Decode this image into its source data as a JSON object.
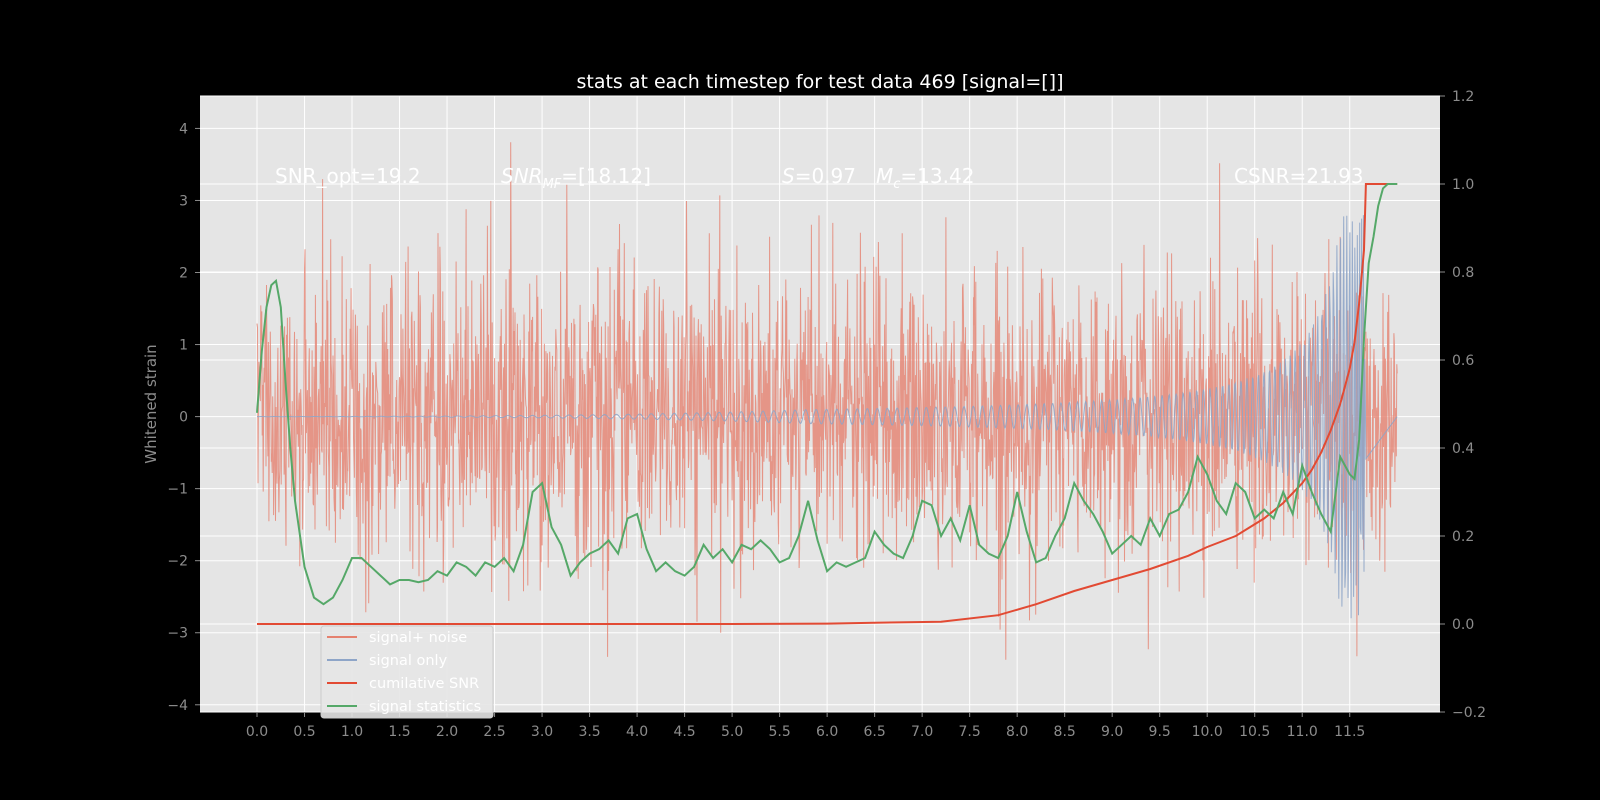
{
  "chart_data": {
    "type": "line",
    "title": "stats at each timestep for test data 469 [signal=[]]",
    "ylabel": "Whitened strain",
    "y2label": "",
    "xlim": [
      -0.6,
      12.45
    ],
    "ylim": [
      -4.1,
      4.45
    ],
    "y2lim": [
      -0.2,
      1.2
    ],
    "x_ticks": [
      0.0,
      0.5,
      1.0,
      1.5,
      2.0,
      2.5,
      3.0,
      3.5,
      4.0,
      4.5,
      5.0,
      5.5,
      6.0,
      6.5,
      7.0,
      7.5,
      8.0,
      8.5,
      9.0,
      9.5,
      10.0,
      10.5,
      11.0,
      11.5
    ],
    "x_tick_labels": [
      "0.0",
      "0.5",
      "1.0",
      "1.5",
      "2.0",
      "2.5",
      "3.0",
      "3.5",
      "4.0",
      "4.5",
      "5.0",
      "5.5",
      "6.0",
      "6.5",
      "7.0",
      "7.5",
      "8.0",
      "8.5",
      "9.0",
      "9.5",
      "10.0",
      "10.5",
      "11.0",
      "11.5"
    ],
    "y_ticks": [
      -4,
      -3,
      -2,
      -1,
      0,
      1,
      2,
      3,
      4
    ],
    "y_tick_labels": [
      "−4",
      "−3",
      "−2",
      "−1",
      "0",
      "1",
      "2",
      "3",
      "4"
    ],
    "y2_ticks": [
      -0.2,
      0.0,
      0.2,
      0.4,
      0.6,
      0.8,
      1.0,
      1.2
    ],
    "y2_tick_labels": [
      "−0.2",
      "0.0",
      "0.2",
      "0.4",
      "0.6",
      "0.8",
      "1.0",
      "1.2"
    ],
    "grid": true,
    "legend_position": "lower-left",
    "annotations": {
      "snr_opt": "SNR_opt=19.2",
      "snr_mf_main": "SNR",
      "snr_mf_sub": "MF",
      "snr_mf_val": "=[18.12]",
      "s_main": "S",
      "s_val": "=0.97",
      "mc_main": "M",
      "mc_sub": "c",
      "mc_val": "=13.42",
      "csnr": "CSNR=21.93"
    },
    "series": [
      {
        "name": "signal+ noise",
        "color": "#e5816f",
        "axis": "left",
        "band": {
          "x_start": 0.0,
          "x_end": 12.0,
          "sigma": 1.0,
          "max_spike": 4.08,
          "min_spike": -3.65
        }
      },
      {
        "name": "signal only",
        "color": "#8ea5c8",
        "axis": "left",
        "chirp": {
          "x_start": 0.0,
          "x_end": 11.67,
          "peak_amplitude": 2.8
        }
      },
      {
        "name": "cumilative SNR",
        "color": "#e24a33",
        "axis": "right",
        "x": [
          0.0,
          5.0,
          6.0,
          6.5,
          7.2,
          7.8,
          8.2,
          8.6,
          9.0,
          9.4,
          9.8,
          10.0,
          10.3,
          10.6,
          10.8,
          11.0,
          11.1,
          11.2,
          11.3,
          11.4,
          11.5,
          11.55,
          11.6,
          11.65,
          11.67,
          12.0
        ],
        "values": [
          0.0,
          0.0,
          0.001,
          0.003,
          0.005,
          0.02,
          0.045,
          0.075,
          0.1,
          0.125,
          0.155,
          0.175,
          0.2,
          0.24,
          0.275,
          0.32,
          0.35,
          0.39,
          0.44,
          0.5,
          0.58,
          0.64,
          0.73,
          0.85,
          1.0,
          1.0
        ]
      },
      {
        "name": "signal statistics",
        "color": "#55a868",
        "axis": "right",
        "x": [
          0.0,
          0.05,
          0.1,
          0.15,
          0.2,
          0.25,
          0.3,
          0.35,
          0.4,
          0.5,
          0.6,
          0.7,
          0.8,
          0.9,
          1.0,
          1.1,
          1.2,
          1.3,
          1.4,
          1.5,
          1.6,
          1.7,
          1.8,
          1.9,
          2.0,
          2.1,
          2.2,
          2.3,
          2.4,
          2.5,
          2.6,
          2.7,
          2.8,
          2.9,
          3.0,
          3.1,
          3.2,
          3.3,
          3.4,
          3.5,
          3.6,
          3.7,
          3.8,
          3.9,
          4.0,
          4.1,
          4.2,
          4.3,
          4.4,
          4.5,
          4.6,
          4.7,
          4.8,
          4.9,
          5.0,
          5.1,
          5.2,
          5.3,
          5.4,
          5.5,
          5.6,
          5.7,
          5.8,
          5.9,
          6.0,
          6.1,
          6.2,
          6.3,
          6.4,
          6.5,
          6.6,
          6.7,
          6.8,
          6.9,
          7.0,
          7.1,
          7.2,
          7.3,
          7.4,
          7.5,
          7.6,
          7.7,
          7.8,
          7.9,
          8.0,
          8.1,
          8.2,
          8.3,
          8.4,
          8.5,
          8.6,
          8.7,
          8.8,
          8.9,
          9.0,
          9.1,
          9.2,
          9.3,
          9.4,
          9.5,
          9.6,
          9.7,
          9.8,
          9.9,
          10.0,
          10.1,
          10.2,
          10.3,
          10.4,
          10.5,
          10.6,
          10.7,
          10.8,
          10.9,
          11.0,
          11.1,
          11.2,
          11.3,
          11.4,
          11.45,
          11.5,
          11.55,
          11.6,
          11.65,
          11.7,
          11.75,
          11.8,
          11.85,
          11.9,
          11.95,
          12.0
        ],
        "values": [
          0.48,
          0.62,
          0.72,
          0.77,
          0.78,
          0.72,
          0.55,
          0.4,
          0.28,
          0.13,
          0.06,
          0.045,
          0.06,
          0.1,
          0.15,
          0.15,
          0.13,
          0.11,
          0.09,
          0.1,
          0.1,
          0.095,
          0.1,
          0.12,
          0.11,
          0.14,
          0.13,
          0.11,
          0.14,
          0.13,
          0.15,
          0.12,
          0.18,
          0.3,
          0.32,
          0.22,
          0.18,
          0.11,
          0.14,
          0.16,
          0.17,
          0.19,
          0.16,
          0.24,
          0.25,
          0.17,
          0.12,
          0.14,
          0.12,
          0.11,
          0.13,
          0.18,
          0.15,
          0.17,
          0.14,
          0.18,
          0.17,
          0.19,
          0.17,
          0.14,
          0.15,
          0.2,
          0.28,
          0.19,
          0.12,
          0.14,
          0.13,
          0.14,
          0.15,
          0.21,
          0.18,
          0.16,
          0.15,
          0.2,
          0.28,
          0.27,
          0.2,
          0.24,
          0.19,
          0.27,
          0.18,
          0.16,
          0.15,
          0.2,
          0.3,
          0.21,
          0.14,
          0.15,
          0.2,
          0.24,
          0.32,
          0.28,
          0.25,
          0.21,
          0.16,
          0.18,
          0.2,
          0.18,
          0.24,
          0.2,
          0.25,
          0.26,
          0.3,
          0.38,
          0.34,
          0.28,
          0.25,
          0.32,
          0.3,
          0.24,
          0.26,
          0.24,
          0.3,
          0.25,
          0.36,
          0.3,
          0.25,
          0.21,
          0.38,
          0.36,
          0.34,
          0.33,
          0.42,
          0.65,
          0.82,
          0.88,
          0.95,
          0.99,
          1.0,
          1.0,
          1.0
        ]
      }
    ]
  }
}
